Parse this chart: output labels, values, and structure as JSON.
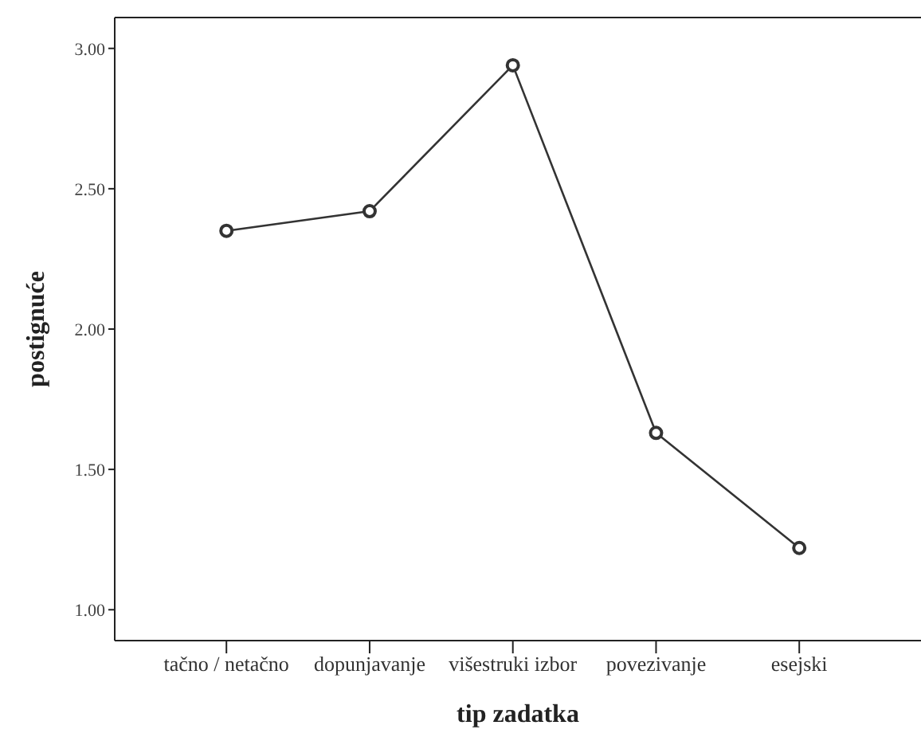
{
  "chart_data": {
    "type": "line",
    "xlabel": "tip zadatka",
    "ylabel": "postignuće",
    "categories": [
      "tačno / netačno",
      "dopunjavanje",
      "višestruki izbor",
      "povezivanje",
      "esejski"
    ],
    "series": [
      {
        "color": "#333333",
        "values": [
          2.35,
          2.42,
          2.94,
          1.63,
          1.22
        ]
      }
    ],
    "ylim": [
      0.89,
      3.11
    ],
    "yticks": [
      {
        "value": 1,
        "label": "1.00"
      },
      {
        "value": 1.5,
        "label": "1.50"
      },
      {
        "value": 2,
        "label": "2.00"
      },
      {
        "value": 2.5,
        "label": "2.50"
      },
      {
        "value": 3,
        "label": "3.00"
      }
    ],
    "grid": false,
    "legend": false,
    "marker": "circle",
    "line_style": "solid"
  }
}
